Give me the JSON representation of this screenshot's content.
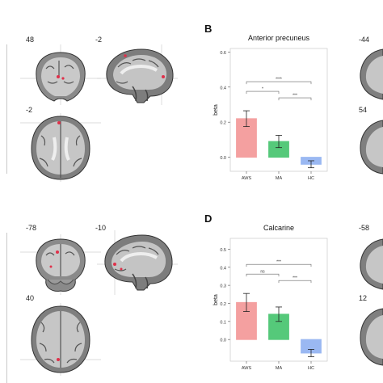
{
  "panels": {
    "top": {
      "letter": "B",
      "coords": [
        "48",
        "-2",
        "-2",
        "54",
        "-44"
      ],
      "chart_title": "Anterior precuneus"
    },
    "bottom": {
      "letter": "D",
      "coords": [
        "-78",
        "-10",
        "40",
        "12",
        "-58"
      ],
      "chart_title": "Calcarine"
    }
  },
  "chart_data": [
    {
      "type": "bar",
      "title": "Anterior precuneus",
      "categories": [
        "AWS",
        "MA",
        "HC"
      ],
      "values": [
        0.22,
        0.09,
        -0.04
      ],
      "errors": [
        0.045,
        0.035,
        0.02
      ],
      "ylabel": "beta",
      "xlabel": "",
      "ylim": [
        -0.08,
        0.62
      ],
      "yticks": [
        "0.0",
        "0.2",
        "0.4",
        "0.6"
      ],
      "colors": [
        "#f4a0a0",
        "#55c97a",
        "#9ab8f2"
      ],
      "significance": [
        {
          "from": "AWS",
          "to": "HC",
          "label": "****"
        },
        {
          "from": "AWS",
          "to": "MA",
          "label": "*"
        },
        {
          "from": "MA",
          "to": "HC",
          "label": "***"
        }
      ],
      "grid": false
    },
    {
      "type": "bar",
      "title": "Calcarine",
      "categories": [
        "AWS",
        "MA",
        "HC"
      ],
      "values": [
        0.205,
        0.14,
        -0.075
      ],
      "errors": [
        0.05,
        0.04,
        0.02
      ],
      "ylabel": "beta",
      "xlabel": "",
      "ylim": [
        -0.12,
        0.56
      ],
      "yticks": [
        "0.0",
        "0.1",
        "0.2",
        "0.3",
        "0.4",
        "0.5"
      ],
      "colors": [
        "#f4a0a0",
        "#55c97a",
        "#9ab8f2"
      ],
      "significance": [
        {
          "from": "AWS",
          "to": "HC",
          "label": "***"
        },
        {
          "from": "AWS",
          "to": "MA",
          "label": "ns"
        },
        {
          "from": "MA",
          "to": "HC",
          "label": "***"
        }
      ],
      "grid": false
    }
  ]
}
